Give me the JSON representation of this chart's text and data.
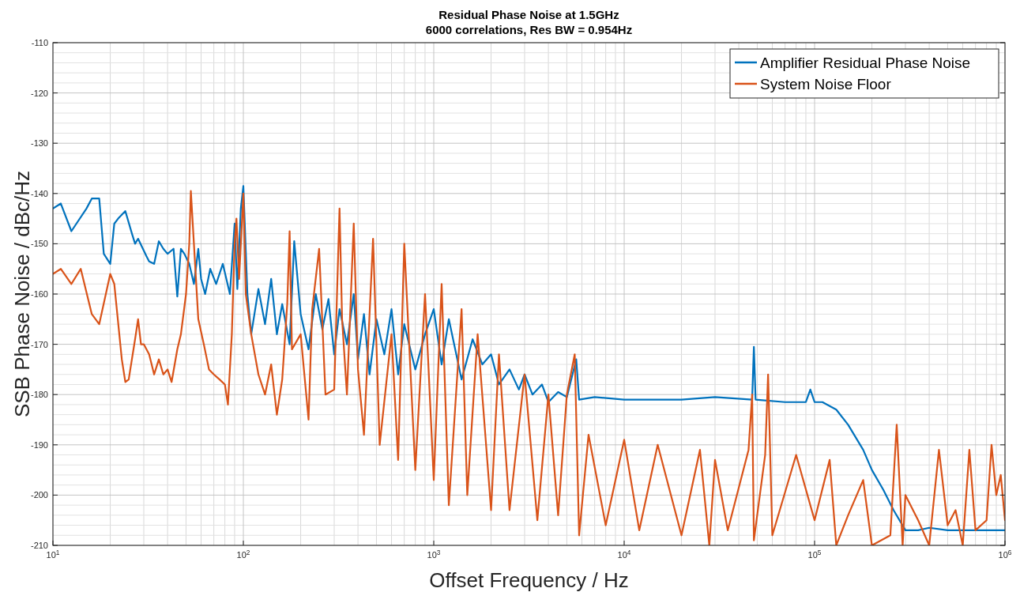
{
  "chart_data": {
    "type": "line",
    "title": "Residual Phase Noise at 1.5GHz",
    "subtitle": "6000 correlations, Res BW = 0.954Hz",
    "xlabel": "Offset Frequency / Hz",
    "ylabel": "SSB Phase Noise / dBc/Hz",
    "log": "x",
    "grid": true,
    "legend": "top right",
    "marker": "none",
    "line_style": "solid",
    "xlim": [
      10,
      1000000
    ],
    "ylim": [
      -210,
      -110
    ],
    "xticks": [
      {
        "value": 10,
        "label": "10$^{1}$"
      },
      {
        "value": 100,
        "label": "10$^{2}$"
      },
      {
        "value": 1000,
        "label": "10$^{3}$"
      },
      {
        "value": 10000,
        "label": "10$^{4}$"
      },
      {
        "value": 100000,
        "label": "10$^{5}$"
      },
      {
        "value": 1000000,
        "label": "10$^{6}$"
      }
    ],
    "yticks": [
      -210,
      -200,
      -190,
      -180,
      -170,
      -160,
      -150,
      -140,
      -130,
      -120,
      -110
    ],
    "series": [
      {
        "name": "Amplifier Residual Phase Noise",
        "color": "#0072bd",
        "x": [
          10,
          11,
          12.5,
          15,
          16,
          17.5,
          18.5,
          20,
          21,
          22,
          24,
          26,
          27,
          28,
          31,
          32,
          34,
          36,
          38,
          40,
          43,
          45,
          47,
          49,
          52,
          55,
          58,
          60,
          63,
          67,
          72,
          78,
          85,
          90,
          93,
          97,
          100,
          105,
          110,
          120,
          130,
          140,
          150,
          160,
          175,
          185,
          200,
          220,
          240,
          260,
          280,
          300,
          320,
          350,
          380,
          400,
          430,
          460,
          500,
          550,
          600,
          650,
          700,
          800,
          900,
          1000,
          1100,
          1200,
          1400,
          1600,
          1800,
          2000,
          2200,
          2500,
          2800,
          3000,
          3300,
          3700,
          4000,
          4500,
          5000,
          5600,
          5800,
          7000,
          10000,
          20000,
          30000,
          47000,
          48000,
          49000,
          70000,
          90000,
          95000,
          100000,
          110000,
          130000,
          150000,
          180000,
          200000,
          230000,
          260000,
          300000,
          350000,
          400000,
          500000,
          1000000
        ],
        "values": [
          -143,
          -142,
          -147.5,
          -143,
          -141,
          -141,
          -152,
          -154,
          -146,
          -145,
          -143.5,
          -148,
          -150,
          -149,
          -152.5,
          -153.5,
          -154,
          -149.5,
          -151,
          -152,
          -151,
          -160.5,
          -151,
          -152,
          -154,
          -158,
          -151,
          -157,
          -160,
          -155,
          -158,
          -154,
          -160,
          -146,
          -159,
          -143,
          -138.5,
          -160,
          -168,
          -159,
          -166,
          -157,
          -168,
          -162,
          -170,
          -149.5,
          -164,
          -171,
          -160,
          -167,
          -161,
          -172,
          -163,
          -170,
          -160,
          -173,
          -164,
          -176,
          -165,
          -172,
          -163,
          -176,
          -166,
          -175,
          -168,
          -163,
          -174,
          -165,
          -177,
          -169,
          -174,
          -172,
          -178,
          -175,
          -179,
          -176,
          -180,
          -178,
          -181.5,
          -179.5,
          -180.5,
          -173,
          -181,
          -180.5,
          -181,
          -181,
          -180.5,
          -181,
          -170.5,
          -181,
          -181.5,
          -181.5,
          -179,
          -181.5,
          -181.5,
          -183,
          -186,
          -191,
          -195,
          -199,
          -203,
          -207,
          -207,
          -206.5,
          -207,
          -207
        ]
      },
      {
        "name": "System Noise Floor",
        "color": "#d95319",
        "x": [
          10,
          11,
          12.5,
          14,
          16,
          17.5,
          20,
          21,
          23,
          24,
          25,
          27,
          28,
          29,
          30,
          32,
          34,
          36,
          38,
          40,
          42,
          45,
          47,
          50,
          52,
          53,
          55,
          58,
          62,
          66,
          70,
          75,
          80,
          83,
          87,
          90,
          92,
          95,
          100,
          103,
          110,
          120,
          130,
          140,
          150,
          160,
          170,
          175,
          180,
          200,
          220,
          230,
          250,
          270,
          300,
          320,
          330,
          350,
          380,
          400,
          430,
          480,
          520,
          600,
          650,
          700,
          800,
          900,
          1000,
          1100,
          1200,
          1400,
          1500,
          1700,
          2000,
          2200,
          2500,
          3000,
          3500,
          4000,
          4500,
          5000,
          5500,
          5800,
          6500,
          8000,
          10000,
          12000,
          15000,
          20000,
          25000,
          28000,
          30000,
          35000,
          45000,
          47000,
          48000,
          55000,
          57000,
          60000,
          80000,
          100000,
          120000,
          130000,
          150000,
          180000,
          200000,
          250000,
          270000,
          290000,
          300000,
          350000,
          400000,
          450000,
          500000,
          550000,
          600000,
          650000,
          700000,
          800000,
          850000,
          900000,
          950000,
          1000000
        ],
        "values": [
          -156,
          -155,
          -158,
          -155,
          -164,
          -166,
          -156,
          -158,
          -173,
          -177.5,
          -177,
          -169,
          -165,
          -170,
          -170,
          -172,
          -176,
          -173,
          -176,
          -175,
          -177.5,
          -171,
          -168,
          -160,
          -150,
          -139.5,
          -150,
          -165,
          -170,
          -175,
          -176,
          -177,
          -178,
          -182,
          -168,
          -150,
          -145,
          -157,
          -140,
          -160,
          -168,
          -176,
          -180,
          -174,
          -184,
          -177,
          -162,
          -147.5,
          -171,
          -168,
          -185,
          -163,
          -151,
          -180,
          -179,
          -143,
          -165,
          -180,
          -146,
          -175,
          -188,
          -149,
          -190,
          -168,
          -193,
          -150,
          -195,
          -160,
          -197,
          -158,
          -202,
          -163,
          -200,
          -168,
          -203,
          -172,
          -203,
          -176,
          -205,
          -180,
          -204,
          -180,
          -172,
          -208,
          -188,
          -206,
          -189,
          -207,
          -190,
          -208,
          -191,
          -210,
          -193,
          -207,
          -191,
          -180,
          -209,
          -192,
          -176,
          -208,
          -192,
          -205,
          -193,
          -210,
          -204,
          -197,
          -210,
          -208,
          -186,
          -210,
          -200,
          -205,
          -210,
          -191,
          -206,
          -203,
          -210,
          -191,
          -207,
          -205,
          -190,
          -200,
          -196,
          -205
        ]
      }
    ]
  }
}
